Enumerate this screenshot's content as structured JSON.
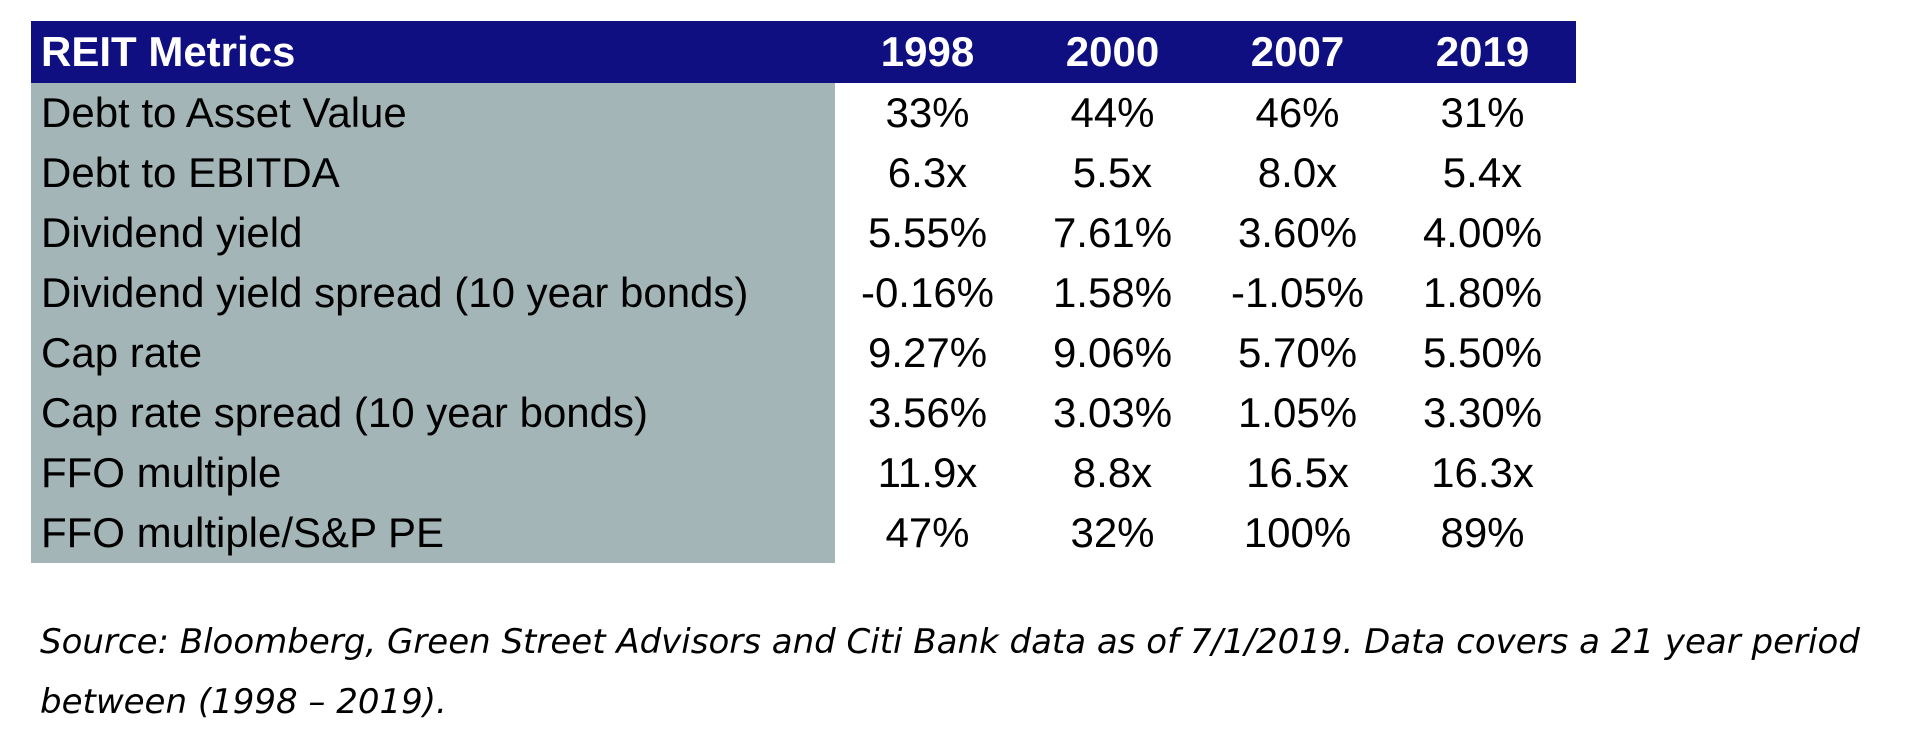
{
  "table": {
    "title": "REIT Metrics",
    "years": [
      "1998",
      "2000",
      "2007",
      "2019"
    ],
    "rows": [
      {
        "label": "Debt to Asset Value",
        "values": [
          "33%",
          "44%",
          "46%",
          "31%"
        ]
      },
      {
        "label": "Debt to EBITDA",
        "values": [
          "6.3x",
          "5.5x",
          "8.0x",
          "5.4x"
        ]
      },
      {
        "label": "Dividend yield",
        "values": [
          "5.55%",
          "7.61%",
          "3.60%",
          "4.00%"
        ]
      },
      {
        "label": "Dividend yield spread (10 year bonds)",
        "values": [
          "-0.16%",
          "1.58%",
          "-1.05%",
          "1.80%"
        ]
      },
      {
        "label": "Cap rate",
        "values": [
          "9.27%",
          "9.06%",
          "5.70%",
          "5.50%"
        ]
      },
      {
        "label": "Cap rate spread (10 year bonds)",
        "values": [
          "3.56%",
          "3.03%",
          "1.05%",
          "3.30%"
        ]
      },
      {
        "label": "FFO multiple",
        "values": [
          "11.9x",
          "8.8x",
          "16.5x",
          "16.3x"
        ]
      },
      {
        "label": "FFO multiple/S&P PE",
        "values": [
          "47%",
          "32%",
          "100%",
          "89%"
        ]
      }
    ]
  },
  "source_note": "Source: Bloomberg, Green Street Advisors and Citi Bank data as of 7/1/2019. Data covers a 21 year period between (1998 – 2019).",
  "colors": {
    "header_bg": "#0f0f82",
    "label_col_bg": "#a3b5b7"
  }
}
